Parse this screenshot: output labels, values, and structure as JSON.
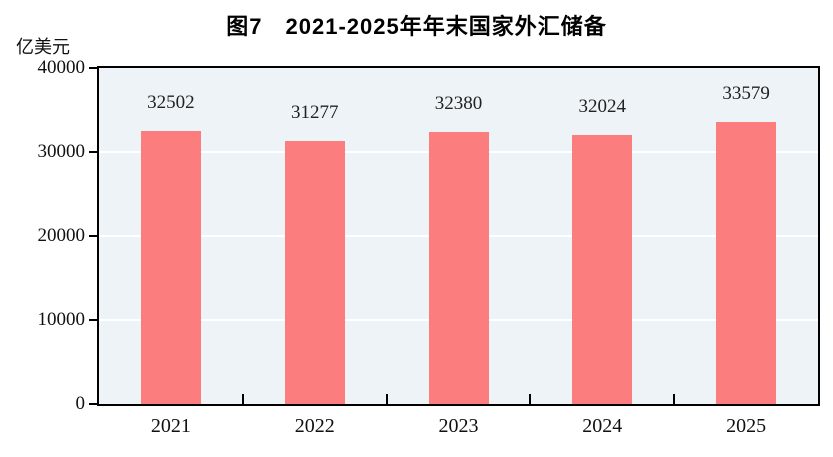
{
  "title": "图7　2021-2025年年末国家外汇储备",
  "unit_label": "亿美元",
  "chart_data": {
    "type": "bar",
    "title": "图7　2021-2025年年末国家外汇储备",
    "ylabel": "亿美元",
    "categories": [
      "2021",
      "2022",
      "2023",
      "2024",
      "2025"
    ],
    "values": [
      32502,
      31277,
      32380,
      32024,
      33579
    ],
    "ylim": [
      0,
      40000
    ],
    "yticks": [
      0,
      10000,
      20000,
      30000,
      40000
    ],
    "grid": true,
    "legend": "none",
    "bar_color": "#FC7D7D",
    "plot_bg": "#EDF3F7",
    "gridline_color": "#FFFFFF",
    "frame_color": "#000000"
  }
}
